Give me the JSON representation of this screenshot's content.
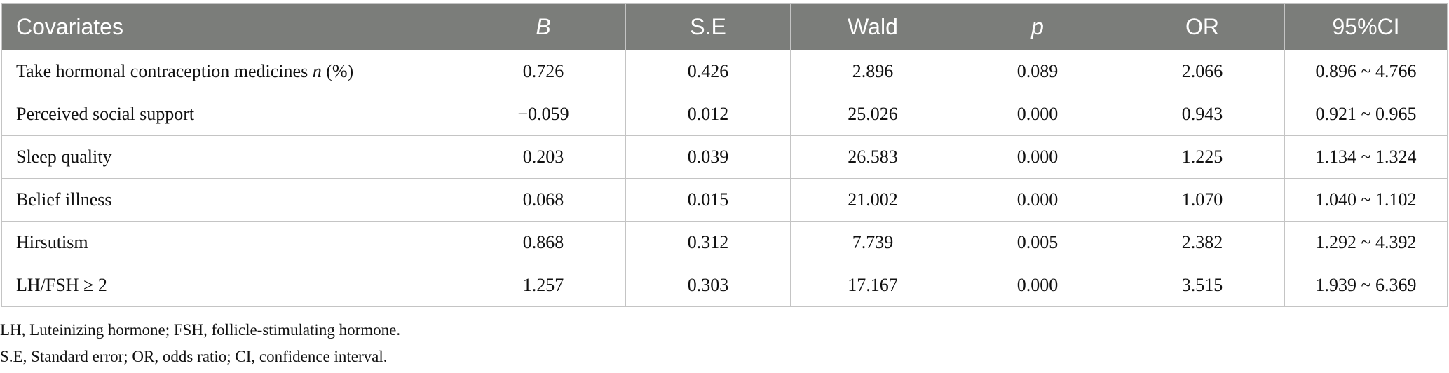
{
  "table": {
    "headers": [
      "Covariates",
      "B",
      "S.E",
      "Wald",
      "p",
      "OR",
      "95%CI"
    ],
    "rows": [
      {
        "label": "Take hormonal contraception medicines ",
        "label_em": "n",
        "label_suffix": " (%)",
        "cells": [
          "0.726",
          "0.426",
          "2.896",
          "0.089",
          "2.066",
          "0.896 ~ 4.766"
        ]
      },
      {
        "label": "Perceived social support",
        "label_em": "",
        "label_suffix": "",
        "cells": [
          "−0.059",
          "0.012",
          "25.026",
          "0.000",
          "0.943",
          "0.921 ~ 0.965"
        ]
      },
      {
        "label": "Sleep quality",
        "label_em": "",
        "label_suffix": "",
        "cells": [
          "0.203",
          "0.039",
          "26.583",
          "0.000",
          "1.225",
          "1.134 ~ 1.324"
        ]
      },
      {
        "label": "Belief illness",
        "label_em": "",
        "label_suffix": "",
        "cells": [
          "0.068",
          "0.015",
          "21.002",
          "0.000",
          "1.070",
          "1.040 ~ 1.102"
        ]
      },
      {
        "label": "Hirsutism",
        "label_em": "",
        "label_suffix": "",
        "cells": [
          "0.868",
          "0.312",
          "7.739",
          "0.005",
          "2.382",
          "1.292 ~ 4.392"
        ]
      },
      {
        "label": "LH/FSH ≥ 2",
        "label_em": "",
        "label_suffix": "",
        "cells": [
          "1.257",
          "0.303",
          "17.167",
          "0.000",
          "3.515",
          "1.939 ~ 6.369"
        ]
      }
    ]
  },
  "footnotes": [
    "LH, Luteinizing hormone; FSH, follicle-stimulating hormone.",
    "S.E, Standard error; OR, odds ratio; CI, confidence interval."
  ]
}
